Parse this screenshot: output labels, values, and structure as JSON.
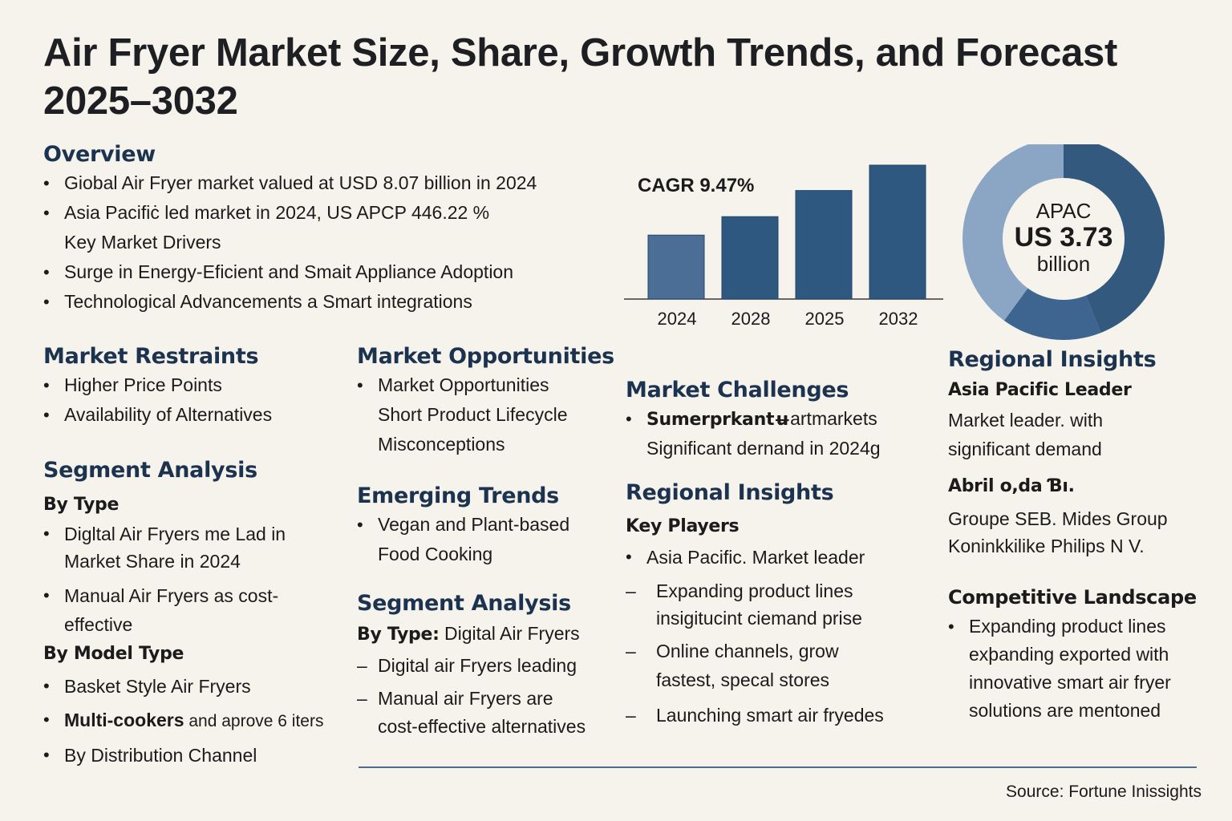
{
  "title": "Air Fryer Market Size, Share, Growth Trends, and Forecast 2025–3032",
  "overview": {
    "heading": "Overview",
    "items": [
      {
        "type": "bullet",
        "text": "Giobal Air Fryer market valued at USD 8.07 billion in 2024"
      },
      {
        "type": "bullet",
        "text": "Asia Pacifiċ led market in 2024, US APCP 446.22 %"
      },
      {
        "type": "plain",
        "text": "Key Market Drivers"
      },
      {
        "type": "bullet",
        "text": "Surge in Energy-Eficient and Smait Appliance Adoption"
      },
      {
        "type": "bullet",
        "text": "Technological Advancements a Smart integrations"
      }
    ]
  },
  "restraints": {
    "heading": "Market Restraints",
    "items": [
      "Higher Price Points",
      "Availability of Alternatives"
    ]
  },
  "segment_left": {
    "heading": "Segment Analysis",
    "by_type_label": "By Type",
    "by_type_items": [
      {
        "line1": "Digltal Air Fryers me Lad in",
        "line2": "Market Share in 2024"
      },
      {
        "line1": "Manual Air Fryers as cost-",
        "line2": "effective"
      }
    ],
    "by_model_label": "By Model Type",
    "by_model_items": [
      {
        "text": "Basket Style Air Fryers",
        "bold": ""
      },
      {
        "bold": "Multi-cookers",
        "text": " and aprove 6 iters"
      },
      {
        "text": "By Distribution Channel",
        "bold": ""
      }
    ]
  },
  "opportunities": {
    "heading": "Market Opportunities",
    "lines": [
      "Market Opportunities",
      "Short Product Lifecycle",
      "Misconceptions"
    ]
  },
  "trends": {
    "heading": "Emerging Trends",
    "lines": [
      "Vegan and Plant-based",
      "Food Cooking"
    ]
  },
  "segment_mid": {
    "heading": "Segment Analysis",
    "by_type_bold": "By Type:",
    "by_type_text": " Digital Air Fryers",
    "items": [
      {
        "line1": "Digital air Fryers leading",
        "line2": ""
      },
      {
        "line1": "Manual air Fryers are",
        "line2": "cost-effective alternatives"
      }
    ]
  },
  "challenges": {
    "heading": "Market Challenges",
    "bold": "Sumerprkantʉ",
    "text": "artmarkets",
    "line2": "Significant dernand in 2024g"
  },
  "regional_mid": {
    "heading": "Regional Insights",
    "key_players_label": "Key Players",
    "bullet": "Asia Pacific. Market leader",
    "items": [
      {
        "line1": "Expanding product lines",
        "line2": "insigitucint ciemand prise"
      },
      {
        "line1": "Online channels, grow",
        "line2": "fastest, specal stores"
      },
      {
        "line1": "Launching smart air fryedes",
        "line2": ""
      }
    ]
  },
  "regional_right": {
    "heading": "Regional Insights",
    "leader_label": "Asia Pacific Leader",
    "leader_lines": [
      "Market leader. with",
      "significant demand"
    ],
    "players_label": "Abril o,da Ɓı.",
    "players_lines": [
      "Groupe SEB. Mides Group",
      "Koninkkilike Philips N V."
    ]
  },
  "competitive": {
    "heading": "Competitive Landscape",
    "lines": [
      "Expanding product lines",
      "exþanding exported with",
      "innovative smart air fryer",
      "solutions are mentoned"
    ]
  },
  "source": "Source: Fortune Inissights",
  "colors": {
    "background": "#f6f2ec",
    "heading": "#1c3350",
    "bar_first": "#4a6e96",
    "bar": "#2f5880",
    "donut_dark": "#33597f",
    "donut_medium": "#3d6590",
    "donut_light": "#8ba6c4",
    "rule": "#4d6c8e"
  },
  "chart_data": [
    {
      "type": "bar",
      "title": "CAGR 9.47%",
      "categories": [
        "2024",
        "2028",
        "2025",
        "2032"
      ],
      "values": [
        8.07,
        10.4,
        13.7,
        16.9
      ],
      "xlabel": "",
      "ylabel": "",
      "ylim": [
        0,
        17
      ],
      "grid": false,
      "legend": "none"
    },
    {
      "type": "pie",
      "variant": "donut",
      "center_label": [
        "APAC",
        "US 3.73",
        "billion"
      ],
      "slices": [
        {
          "name": "segment-dark",
          "value": 44
        },
        {
          "name": "segment-medium",
          "value": 16
        },
        {
          "name": "segment-light",
          "value": 40
        }
      ],
      "legend": "none"
    }
  ]
}
